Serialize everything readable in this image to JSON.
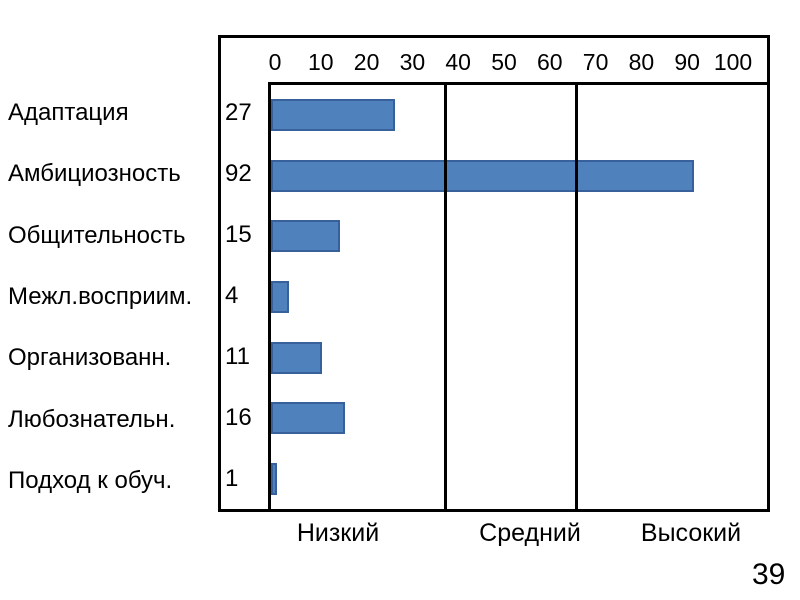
{
  "page": {
    "number": "39",
    "background": "#ffffff"
  },
  "chart_data": {
    "type": "bar",
    "orientation": "horizontal",
    "title": "",
    "categories": [
      "Адаптация",
      "Амбициозность",
      "Общительность",
      "Межл.восприим.",
      "Организованн.",
      "Любознательн.",
      "Подход к обуч."
    ],
    "values": [
      27,
      92,
      15,
      4,
      11,
      16,
      1
    ],
    "value_labels": [
      "27",
      "92",
      "15",
      "4",
      "11",
      "16",
      "1"
    ],
    "x_axis": {
      "position": "top",
      "min": 0,
      "max": 100,
      "ticks": [
        "0",
        "10",
        "20",
        "30",
        "40",
        "50",
        "60",
        "70",
        "80",
        "90",
        "100"
      ]
    },
    "zones": {
      "labels": [
        "Низкий",
        "Средний",
        "Высокий"
      ],
      "boundaries": [
        37.5,
        66
      ]
    },
    "bar_color": "#4F81BD",
    "bar_border_color": "#38609A",
    "frame_color": "#000000",
    "legend": "none",
    "grid": "zone-dividers-only"
  }
}
